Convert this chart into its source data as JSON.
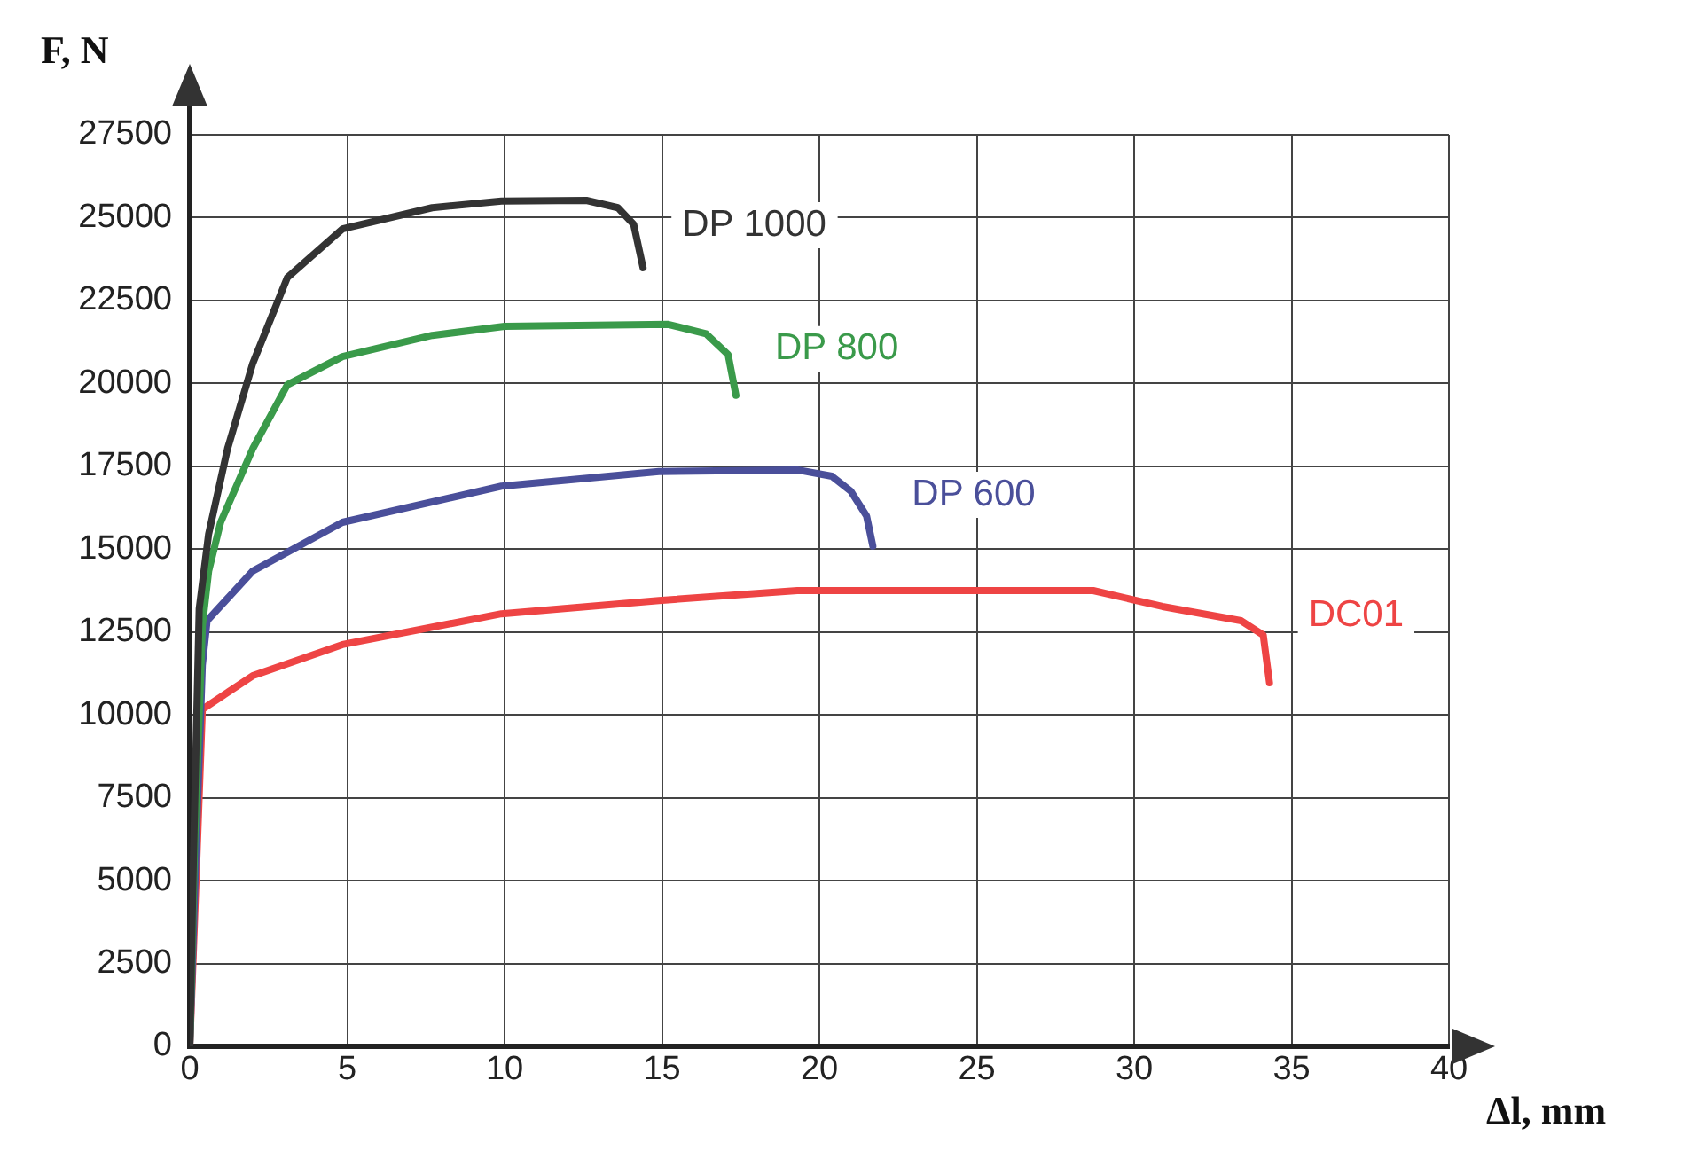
{
  "chart_data": {
    "type": "line",
    "xlabel": "Δl, mm",
    "ylabel": "F, N",
    "xlim": [
      0,
      40
    ],
    "xticks": [
      0,
      5,
      10,
      15,
      20,
      25,
      30,
      35,
      40
    ],
    "ylim": [
      0,
      27500
    ],
    "yticks": [
      0,
      2500,
      5000,
      7500,
      10000,
      12500,
      15000,
      17500,
      20000,
      22500,
      25000,
      27500
    ],
    "grid": true,
    "legend": false,
    "marker": "none",
    "line_style": "solid",
    "series": [
      {
        "name": "DP 1000",
        "color": "#333333",
        "x": [
          0,
          0.1,
          0.3,
          0.6,
          1.2,
          2.0,
          3.1,
          4.85,
          7.7,
          9.9,
          12.6,
          13.6,
          14.1,
          14.4
        ],
        "values": [
          0,
          5000,
          13200,
          15460,
          18030,
          20600,
          23190,
          24660,
          25300,
          25500,
          25520,
          25300,
          24800,
          23490
        ]
      },
      {
        "name": "DP 800",
        "color": "#3a9a4a",
        "x": [
          0,
          0.15,
          0.4,
          0.6,
          0.98,
          2.0,
          3.1,
          4.85,
          7.7,
          10,
          15.2,
          16.4,
          17.1,
          17.35
        ],
        "values": [
          0,
          6000,
          12680,
          14340,
          15810,
          18030,
          19960,
          20810,
          21450,
          21720,
          21780,
          21500,
          20870,
          19640
        ]
      },
      {
        "name": "DP 600",
        "color": "#4a4f9a",
        "x": [
          0,
          0.2,
          0.4,
          0.55,
          2.0,
          4.85,
          9.9,
          14.9,
          19.3,
          20.4,
          21.0,
          21.5,
          21.7
        ],
        "values": [
          0,
          6000,
          11500,
          12840,
          14340,
          15810,
          16900,
          17340,
          17390,
          17200,
          16750,
          16000,
          15090
        ]
      },
      {
        "name": "DC01",
        "color": "#ee4444",
        "x": [
          0,
          0.2,
          0.4,
          2.0,
          4.85,
          9.9,
          14.9,
          19.3,
          28.7,
          30.9,
          33.4,
          34.1,
          34.3
        ],
        "values": [
          0,
          5000,
          10170,
          11180,
          12120,
          13050,
          13450,
          13750,
          13750,
          13270,
          12840,
          12410,
          10970
        ]
      }
    ]
  }
}
